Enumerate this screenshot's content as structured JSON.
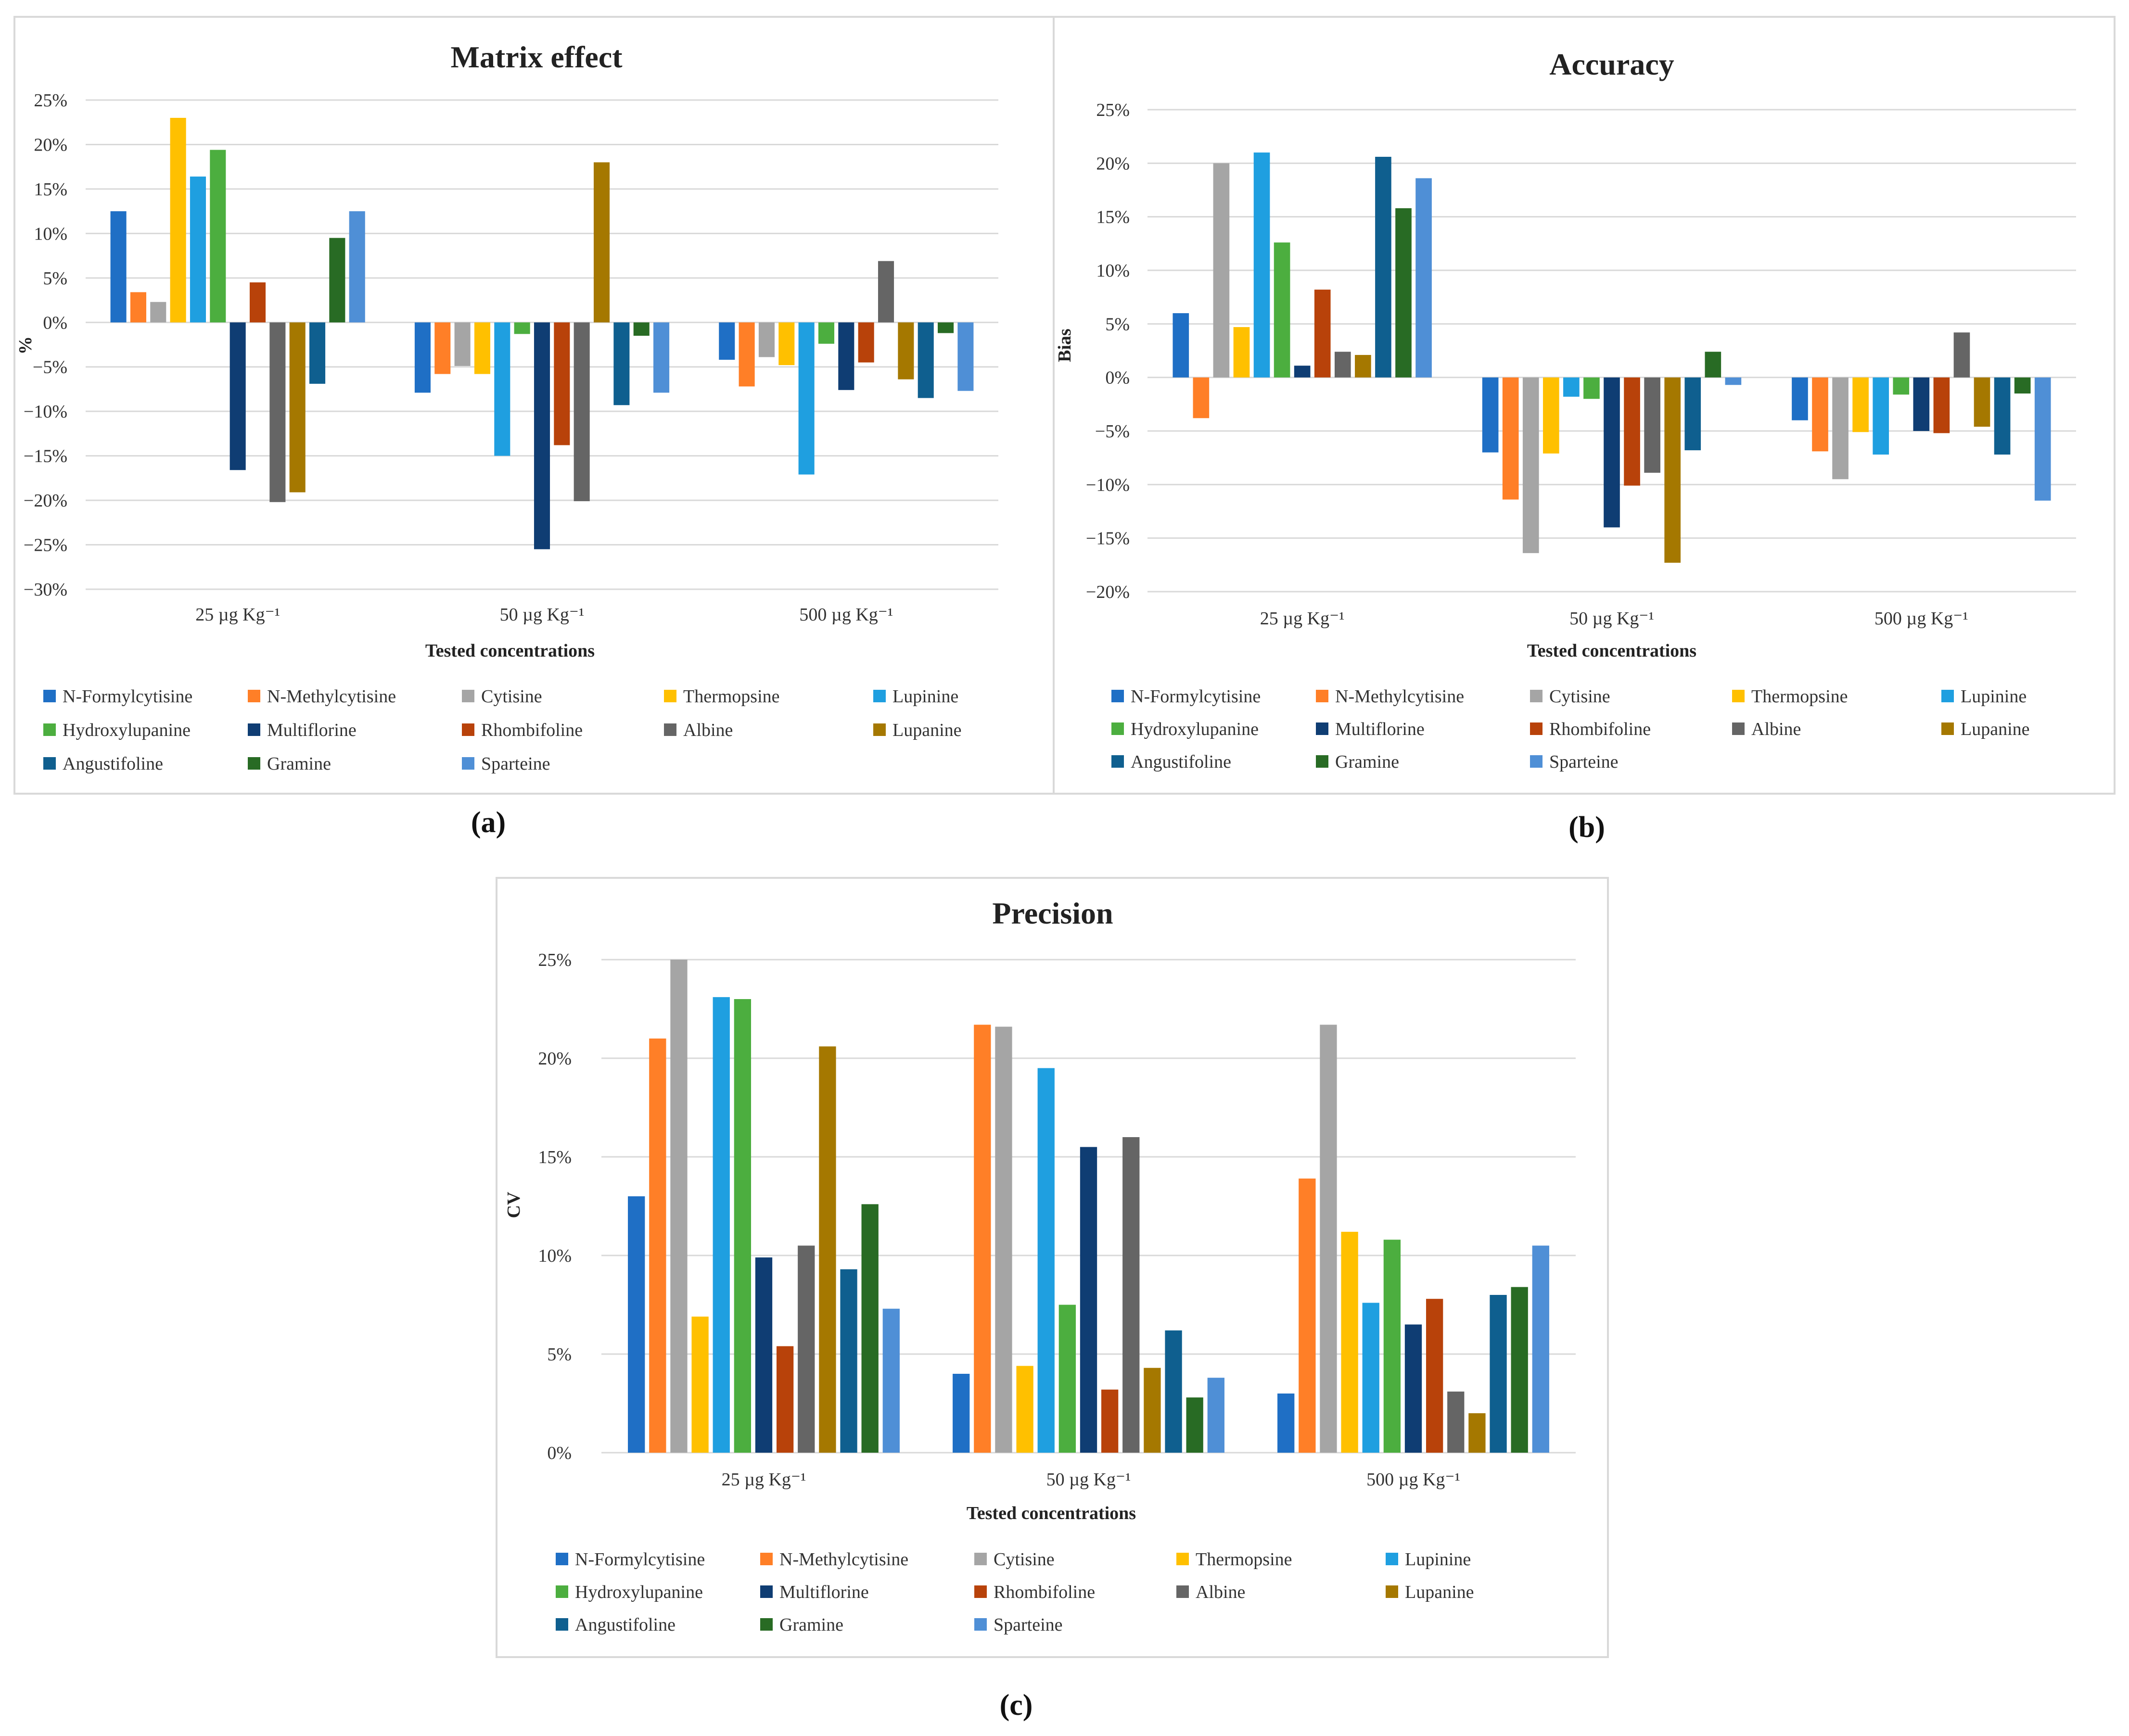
{
  "series_names": [
    "N-Formylcytisine",
    "N-Methylcytisine",
    "Cytisine",
    "Thermopsine",
    "Lupinine",
    "Hydroxylupanine",
    "Multiflorine",
    "Rhombifoline",
    "Albine",
    "Lupanine",
    "Angustifoline",
    "Gramine",
    "Sparteine"
  ],
  "series_colors": [
    "#1f6fc5",
    "#ff7f27",
    "#a5a5a5",
    "#ffc000",
    "#1f9fe0",
    "#4cae3f",
    "#0f3d73",
    "#b8420a",
    "#656565",
    "#a57800",
    "#0f5f8f",
    "#286b24",
    "#4f8fd6"
  ],
  "chart_data": [
    {
      "type": "bar",
      "title": "Matrix effect",
      "xlabel": "Tested concentrations",
      "ylabel": "%",
      "ylim": [
        -30,
        25
      ],
      "yticks": [
        "25%",
        "20%",
        "15%",
        "10%",
        "5%",
        "0%",
        "−5%",
        "−10%",
        "−15%",
        "−20%",
        "−25%",
        "−30%"
      ],
      "categories": [
        "25 µg Kg⁻¹",
        "50 µg Kg⁻¹",
        "500 µg Kg⁻¹"
      ],
      "series": [
        {
          "name": "N-Formylcytisine",
          "values": [
            12.5,
            -7.9,
            -4.2
          ]
        },
        {
          "name": "N-Methylcytisine",
          "values": [
            3.4,
            -5.8,
            -7.2
          ]
        },
        {
          "name": "Cytisine",
          "values": [
            2.3,
            -4.9,
            -3.9
          ]
        },
        {
          "name": "Thermopsine",
          "values": [
            23.0,
            -5.8,
            -4.8
          ]
        },
        {
          "name": "Lupinine",
          "values": [
            16.4,
            -15.0,
            -17.1
          ]
        },
        {
          "name": "Hydroxylupanine",
          "values": [
            19.4,
            -1.3,
            -2.4
          ]
        },
        {
          "name": "Multiflorine",
          "values": [
            -16.6,
            -25.5,
            -7.6
          ]
        },
        {
          "name": "Rhombifoline",
          "values": [
            4.5,
            -13.8,
            -4.5
          ]
        },
        {
          "name": "Albine",
          "values": [
            -20.2,
            -20.1,
            6.9
          ]
        },
        {
          "name": "Lupanine",
          "values": [
            -19.1,
            18.0,
            -6.4
          ]
        },
        {
          "name": "Angustifoline",
          "values": [
            -6.9,
            -9.3,
            -8.5
          ]
        },
        {
          "name": "Gramine",
          "values": [
            9.5,
            -1.5,
            -1.2
          ]
        },
        {
          "name": "Sparteine",
          "values": [
            12.5,
            -7.9,
            -7.7
          ]
        }
      ]
    },
    {
      "type": "bar",
      "title": "Accuracy",
      "xlabel": "Tested concentrations",
      "ylabel": "Bias",
      "ylim": [
        -20,
        25
      ],
      "yticks": [
        "25%",
        "20%",
        "15%",
        "10%",
        "5%",
        "0%",
        "−5%",
        "−10%",
        "−15%",
        "−20%"
      ],
      "categories": [
        "25 µg Kg⁻¹",
        "50 µg Kg⁻¹",
        "500 µg Kg⁻¹"
      ],
      "series": [
        {
          "name": "N-Formylcytisine",
          "values": [
            6.0,
            -7.0,
            -4.0
          ]
        },
        {
          "name": "N-Methylcytisine",
          "values": [
            -3.8,
            -11.4,
            -6.9
          ]
        },
        {
          "name": "Cytisine",
          "values": [
            20.0,
            -16.4,
            -9.5
          ]
        },
        {
          "name": "Thermopsine",
          "values": [
            4.7,
            -7.1,
            -5.1
          ]
        },
        {
          "name": "Lupinine",
          "values": [
            21.0,
            -1.8,
            -7.2
          ]
        },
        {
          "name": "Hydroxylupanine",
          "values": [
            12.6,
            -2.0,
            -1.6
          ]
        },
        {
          "name": "Multiflorine",
          "values": [
            1.1,
            -14.0,
            -5.0
          ]
        },
        {
          "name": "Rhombifoline",
          "values": [
            8.2,
            -10.1,
            -5.2
          ]
        },
        {
          "name": "Albine",
          "values": [
            2.4,
            -8.9,
            4.2
          ]
        },
        {
          "name": "Lupanine",
          "values": [
            2.1,
            -17.3,
            -4.6
          ]
        },
        {
          "name": "Angustifoline",
          "values": [
            20.6,
            -6.8,
            -7.2
          ]
        },
        {
          "name": "Gramine",
          "values": [
            15.8,
            2.4,
            -1.5
          ]
        },
        {
          "name": "Sparteine",
          "values": [
            18.6,
            -0.7,
            -11.5
          ]
        }
      ]
    },
    {
      "type": "bar",
      "title": "Precision",
      "xlabel": "Tested concentrations",
      "ylabel": "CV",
      "ylim": [
        0,
        25
      ],
      "yticks": [
        "25%",
        "20%",
        "15%",
        "10%",
        "5%",
        "0%"
      ],
      "categories": [
        "25 µg Kg⁻¹",
        "50 µg Kg⁻¹",
        "500 µg Kg⁻¹"
      ],
      "series": [
        {
          "name": "N-Formylcytisine",
          "values": [
            13.0,
            4.0,
            3.0
          ]
        },
        {
          "name": "N-Methylcytisine",
          "values": [
            21.0,
            21.7,
            13.9
          ]
        },
        {
          "name": "Cytisine",
          "values": [
            25.0,
            21.6,
            21.7
          ]
        },
        {
          "name": "Thermopsine",
          "values": [
            6.9,
            4.4,
            11.2
          ]
        },
        {
          "name": "Lupinine",
          "values": [
            23.1,
            19.5,
            7.6
          ]
        },
        {
          "name": "Hydroxylupanine",
          "values": [
            23.0,
            7.5,
            10.8
          ]
        },
        {
          "name": "Multiflorine",
          "values": [
            9.9,
            15.5,
            6.5
          ]
        },
        {
          "name": "Rhombifoline",
          "values": [
            5.4,
            3.2,
            7.8
          ]
        },
        {
          "name": "Albine",
          "values": [
            10.5,
            16.0,
            3.1
          ]
        },
        {
          "name": "Lupanine",
          "values": [
            20.6,
            4.3,
            2.0
          ]
        },
        {
          "name": "Angustifoline",
          "values": [
            9.3,
            6.2,
            8.0
          ]
        },
        {
          "name": "Gramine",
          "values": [
            12.6,
            2.8,
            8.4
          ]
        },
        {
          "name": "Sparteine",
          "values": [
            7.3,
            3.8,
            10.5
          ]
        }
      ]
    }
  ],
  "panel_labels": [
    "(a)",
    "(b)",
    "(c)"
  ]
}
